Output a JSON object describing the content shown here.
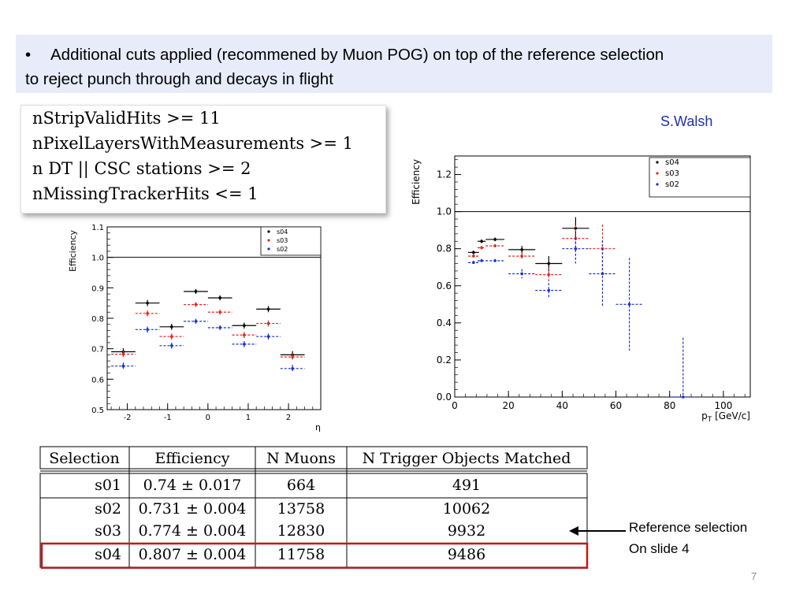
{
  "slide": {
    "bullet": "•",
    "text_line1": "Additional cuts applied (recommened by Muon POG) on top of the reference selection",
    "text_line2": "to reject punch through and decays in flight",
    "author": "S.Walsh",
    "page_number": "7"
  },
  "cuts": [
    "nStripValidHits >= 11",
    "nPixelLayersWithMeasurements >= 1",
    "n DT || CSC stations >= 2",
    "nMissingTrackerHits <= 1"
  ],
  "colors": {
    "s04": "#000000",
    "s03": "#e8231e",
    "s02": "#1a2fd0",
    "banner": "#e8ebfa",
    "highlight": "#c0191c",
    "author": "#1f2fb0"
  },
  "chart_data": [
    {
      "type": "scatter",
      "xlabel": "η",
      "ylabel": "Efficiency",
      "xlim": [
        -2.5,
        2.8
      ],
      "ylim": [
        0.5,
        1.1
      ],
      "yticks": [
        "0.5",
        "0.6",
        "0.7",
        "0.8",
        "0.9",
        "1.0",
        "1.1"
      ],
      "xticks": [
        "-2",
        "-1",
        "0",
        "1",
        "2"
      ],
      "xtick_values": [
        -2,
        -1,
        0,
        1,
        2
      ],
      "ytick_values": [
        0.5,
        0.6,
        0.7,
        0.8,
        0.9,
        1.0,
        1.1
      ],
      "reference_line": 1.0,
      "legend_position": "top-right",
      "legend": [
        "s04",
        "s03",
        "s02"
      ],
      "bin_edges": [
        -2.4,
        -1.8,
        -1.2,
        -0.6,
        0,
        0.6,
        1.2,
        1.8,
        2.4
      ],
      "x": [
        -2.1,
        -1.5,
        -0.9,
        -0.3,
        0.3,
        0.9,
        1.5,
        2.1
      ],
      "series": [
        {
          "name": "s04",
          "values": [
            0.69,
            0.85,
            0.772,
            0.888,
            0.867,
            0.776,
            0.83,
            0.68
          ],
          "errors": [
            0.012,
            0.01,
            0.01,
            0.008,
            0.008,
            0.01,
            0.01,
            0.012
          ]
        },
        {
          "name": "s03",
          "values": [
            0.682,
            0.816,
            0.74,
            0.845,
            0.82,
            0.745,
            0.783,
            0.673
          ],
          "errors": [
            0.012,
            0.01,
            0.01,
            0.008,
            0.008,
            0.01,
            0.01,
            0.012
          ]
        },
        {
          "name": "s02",
          "values": [
            0.643,
            0.763,
            0.71,
            0.79,
            0.769,
            0.715,
            0.74,
            0.635
          ],
          "errors": [
            0.012,
            0.01,
            0.01,
            0.008,
            0.008,
            0.01,
            0.01,
            0.012
          ]
        }
      ]
    },
    {
      "type": "scatter",
      "xlabel": "p",
      "xlabel_sub": "T",
      "xlabel_unit": "[GeV/c]",
      "ylabel": "Efficiency",
      "xlim": [
        0,
        110
      ],
      "ylim": [
        0,
        1.3
      ],
      "yticks": [
        "0.0",
        "0.2",
        "0.4",
        "0.6",
        "0.8",
        "1.0",
        "1.2"
      ],
      "xticks": [
        "0",
        "20",
        "40",
        "60",
        "80",
        "100"
      ],
      "xtick_values": [
        0,
        20,
        40,
        60,
        80,
        100
      ],
      "ytick_values": [
        0,
        0.2,
        0.4,
        0.6,
        0.8,
        1.0,
        1.2
      ],
      "reference_line": 1.0,
      "legend_position": "top-right",
      "legend": [
        "s04",
        "s03",
        "s02"
      ],
      "series": [
        {
          "name": "s04",
          "points": [
            {
              "x": 7,
              "xerr": 2,
              "y": 0.78,
              "yerr": 0.01
            },
            {
              "x": 10,
              "xerr": 1.5,
              "y": 0.84,
              "yerr": 0.01
            },
            {
              "x": 15,
              "xerr": 3.5,
              "y": 0.85,
              "yerr": 0.01
            },
            {
              "x": 25,
              "xerr": 5,
              "y": 0.795,
              "yerr": 0.02
            },
            {
              "x": 35,
              "xerr": 5,
              "y": 0.72,
              "yerr": 0.04
            },
            {
              "x": 45,
              "xerr": 5,
              "y": 0.91,
              "yerr": 0.06
            }
          ]
        },
        {
          "name": "s03",
          "points": [
            {
              "x": 7,
              "xerr": 2,
              "y": 0.76,
              "yerr": 0.01
            },
            {
              "x": 10,
              "xerr": 1.5,
              "y": 0.805,
              "yerr": 0.01
            },
            {
              "x": 15,
              "xerr": 3.5,
              "y": 0.815,
              "yerr": 0.01
            },
            {
              "x": 25,
              "xerr": 5,
              "y": 0.76,
              "yerr": 0.02
            },
            {
              "x": 35,
              "xerr": 5,
              "y": 0.66,
              "yerr": 0.04
            },
            {
              "x": 45,
              "xerr": 5,
              "y": 0.855,
              "yerr": 0.07
            },
            {
              "x": 55,
              "xerr": 5,
              "y": 0.8,
              "yerr": 0.13
            }
          ]
        },
        {
          "name": "s02",
          "points": [
            {
              "x": 7,
              "xerr": 2,
              "y": 0.725,
              "yerr": 0.01
            },
            {
              "x": 10,
              "xerr": 1.5,
              "y": 0.735,
              "yerr": 0.01
            },
            {
              "x": 15,
              "xerr": 3.5,
              "y": 0.735,
              "yerr": 0.01
            },
            {
              "x": 25,
              "xerr": 5,
              "y": 0.665,
              "yerr": 0.025
            },
            {
              "x": 35,
              "xerr": 5,
              "y": 0.575,
              "yerr": 0.04
            },
            {
              "x": 45,
              "xerr": 5,
              "y": 0.8,
              "yerr": 0.08
            },
            {
              "x": 55,
              "xerr": 5,
              "y": 0.665,
              "yerr": 0.18
            },
            {
              "x": 65,
              "xerr": 5,
              "y": 0.5,
              "yerr": 0.25
            },
            {
              "x": 85,
              "xerr": 5,
              "y": 0.0,
              "yerr": 0.32
            }
          ]
        }
      ]
    },
    {
      "type": "table",
      "headers": [
        "Selection",
        "Efficiency",
        "N Muons",
        "N Trigger Objects Matched"
      ],
      "rows": [
        [
          "s01",
          "0.74 ± 0.017",
          "664",
          "491"
        ],
        [
          "s02",
          "0.731 ± 0.004",
          "13758",
          "10062"
        ],
        [
          "s03",
          "0.774 ± 0.004",
          "12830",
          "9932"
        ],
        [
          "s04",
          "0.807 ± 0.004",
          "11758",
          "9486"
        ]
      ],
      "highlighted_row": "s04"
    }
  ],
  "annotation": {
    "line1": "Reference selection",
    "line2": "On slide 4"
  }
}
